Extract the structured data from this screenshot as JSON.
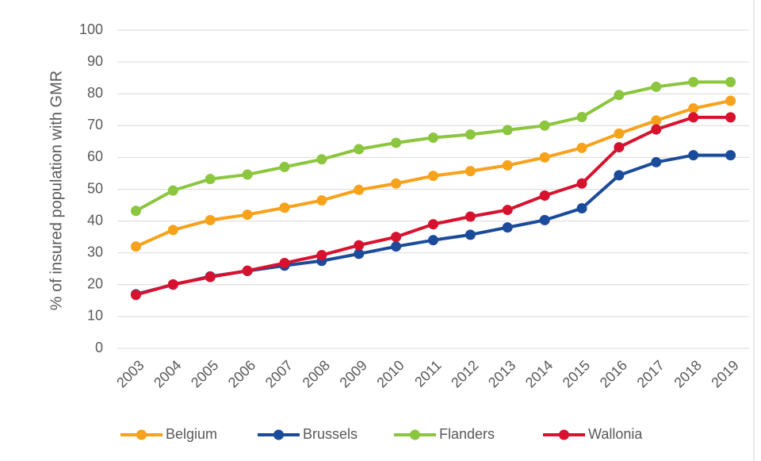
{
  "chart_data": {
    "type": "line",
    "y_label": "% of insured population with GMR",
    "categories": [
      "2003",
      "2004",
      "2005",
      "2006",
      "2007",
      "2008",
      "2009",
      "2010",
      "2011",
      "2012",
      "2013",
      "2014",
      "2015",
      "2016",
      "2017",
      "2018",
      "2019"
    ],
    "series": [
      {
        "name": "Belgium",
        "color": "#f7a21b",
        "values": [
          32,
          37.2,
          40.3,
          42,
          44.2,
          46.5,
          49.8,
          51.8,
          54.2,
          55.7,
          57.5,
          60,
          63,
          67.5,
          71.6,
          75.4,
          77.8
        ]
      },
      {
        "name": "Brussels",
        "color": "#1b4b9b",
        "values": [
          17,
          20,
          22.6,
          24.3,
          26,
          27.5,
          29.7,
          32,
          34,
          35.7,
          38,
          40.3,
          44,
          54.4,
          58.5,
          60.7,
          60.7
        ]
      },
      {
        "name": "Flanders",
        "color": "#8cc63f",
        "values": [
          43.2,
          49.6,
          53.2,
          54.6,
          57,
          59.4,
          62.6,
          64.6,
          66.2,
          67.2,
          68.6,
          70,
          72.7,
          79.6,
          82.2,
          83.7,
          83.7
        ]
      },
      {
        "name": "Wallonia",
        "color": "#d7122f",
        "values": [
          16.8,
          20.1,
          22.4,
          24.4,
          26.8,
          29.3,
          32.4,
          35,
          39,
          41.4,
          43.5,
          48,
          51.8,
          63.2,
          68.8,
          72.6,
          72.6
        ]
      }
    ],
    "ylim": [
      0,
      100
    ],
    "yticks": [
      0,
      10,
      20,
      30,
      40,
      50,
      60,
      70,
      80,
      90,
      100
    ],
    "grid": true,
    "legend": "bottom"
  }
}
